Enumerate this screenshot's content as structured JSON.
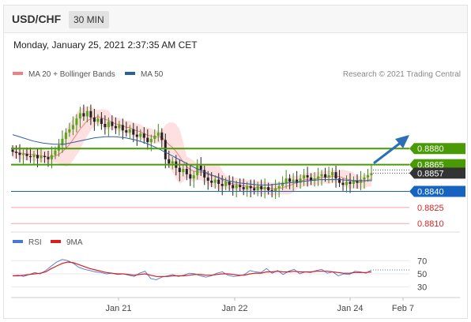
{
  "header": {
    "pair": "USD/CHF",
    "timeframe": "30 MIN"
  },
  "datetime": "Monday, January 25, 2021 2:37:35 AM CET",
  "legend": {
    "bollinger_label": "MA 20 + Bollinger Bands",
    "ma50_label": "MA 50",
    "credit": "Research © 2021 Trading Central"
  },
  "rsi_legend": {
    "rsi_label": "RSI",
    "ma_label": "9MA"
  },
  "colors": {
    "green": "#4a9a06",
    "blue": "#1565c0",
    "red": "#e02020",
    "dark": "#333333",
    "band": "#fdd5d5",
    "ma20": "#f08080",
    "ma50": "#2c5f9e",
    "rsi": "#4a77d4",
    "rsi_ma": "#d81e1e"
  },
  "chart_data": [
    {
      "type": "candlestick",
      "x_ticks": [
        "Jan 21",
        "Jan 22",
        "Jan 24",
        "Feb 7"
      ],
      "ylim": [
        0.8805,
        0.8945
      ],
      "levels": [
        {
          "value": 0.888,
          "label": "0.8880",
          "kind": "resistance-2"
        },
        {
          "value": 0.8865,
          "label": "0.8865",
          "kind": "resistance-1"
        },
        {
          "value": 0.8857,
          "label": "0.8857",
          "kind": "last-price"
        },
        {
          "value": 0.884,
          "label": "0.8840",
          "kind": "pivot"
        },
        {
          "value": 0.8825,
          "label": "0.8825",
          "kind": "support-1"
        },
        {
          "value": 0.881,
          "label": "0.8810",
          "kind": "support-2"
        }
      ],
      "close_series": [
        0.8877,
        0.8876,
        0.8874,
        0.8875,
        0.8873,
        0.8872,
        0.8874,
        0.8871,
        0.8873,
        0.8872,
        0.887,
        0.8874,
        0.8878,
        0.8883,
        0.8889,
        0.8895,
        0.8898,
        0.8902,
        0.8908,
        0.8913,
        0.891,
        0.8915,
        0.8909,
        0.8905,
        0.8908,
        0.8903,
        0.89,
        0.8905,
        0.8901,
        0.8899,
        0.8902,
        0.8897,
        0.8895,
        0.8898,
        0.8893,
        0.8891,
        0.8894,
        0.889,
        0.8886,
        0.8889,
        0.8892,
        0.8895,
        0.8888,
        0.887,
        0.8866,
        0.8868,
        0.8862,
        0.8858,
        0.8861,
        0.8856,
        0.8852,
        0.8855,
        0.8864,
        0.886,
        0.8853,
        0.885,
        0.8848,
        0.8851,
        0.8847,
        0.8845,
        0.8849,
        0.8846,
        0.8843,
        0.8846,
        0.8844,
        0.8842,
        0.8845,
        0.8843,
        0.8841,
        0.8845,
        0.8842,
        0.8844,
        0.8841,
        0.884,
        0.8843,
        0.8845,
        0.8848,
        0.8852,
        0.8849,
        0.8851,
        0.8848,
        0.8852,
        0.8855,
        0.8853,
        0.885,
        0.8852,
        0.8854,
        0.8856,
        0.8853,
        0.8855,
        0.8858,
        0.8852,
        0.8848,
        0.8846,
        0.8849,
        0.8847,
        0.885,
        0.8848,
        0.8851,
        0.8853,
        0.8855,
        0.8857
      ],
      "ma50_series": [
        0.8893,
        0.889,
        0.8887,
        0.8885,
        0.8884,
        0.8884,
        0.8886,
        0.8888,
        0.889,
        0.8891,
        0.8891,
        0.889,
        0.8888,
        0.8885,
        0.8881,
        0.8876,
        0.8871,
        0.8866,
        0.8861,
        0.8857,
        0.8853,
        0.885,
        0.8848,
        0.8847,
        0.8846,
        0.8846,
        0.8847,
        0.8848,
        0.8849,
        0.885,
        0.8851,
        0.8851,
        0.8851,
        0.885,
        0.885,
        0.885
      ]
    },
    {
      "type": "line",
      "title": "RSI",
      "y_ticks": [
        70,
        50,
        30
      ],
      "ylim": [
        20,
        80
      ],
      "series": [
        {
          "name": "RSI",
          "values": [
            47,
            48,
            46,
            49,
            52,
            50,
            55,
            62,
            68,
            72,
            70,
            66,
            60,
            57,
            55,
            53,
            52,
            50,
            51,
            49,
            50,
            48,
            46,
            51,
            54,
            43,
            41,
            45,
            47,
            49,
            46,
            48,
            51,
            50,
            47,
            45,
            47,
            51,
            53,
            48,
            46,
            47,
            49,
            55,
            53,
            52,
            58,
            51,
            55,
            49,
            54,
            57,
            50,
            53,
            52,
            55,
            57,
            51,
            53,
            47,
            50,
            49,
            54,
            53,
            51,
            56
          ]
        },
        {
          "name": "9MA",
          "values": [
            47,
            47,
            48,
            49,
            50,
            51,
            53,
            58,
            62,
            66,
            68,
            67,
            64,
            61,
            58,
            56,
            54,
            52,
            51,
            50,
            50,
            49,
            48,
            49,
            50,
            48,
            46,
            46,
            46,
            47,
            47,
            47,
            48,
            49,
            49,
            48,
            48,
            49,
            50,
            50,
            49,
            48,
            48,
            50,
            51,
            51,
            53,
            53,
            54,
            53,
            53,
            54,
            53,
            53,
            53,
            54,
            54,
            54,
            53,
            52,
            51,
            51,
            52,
            52,
            52,
            53
          ]
        }
      ]
    }
  ]
}
